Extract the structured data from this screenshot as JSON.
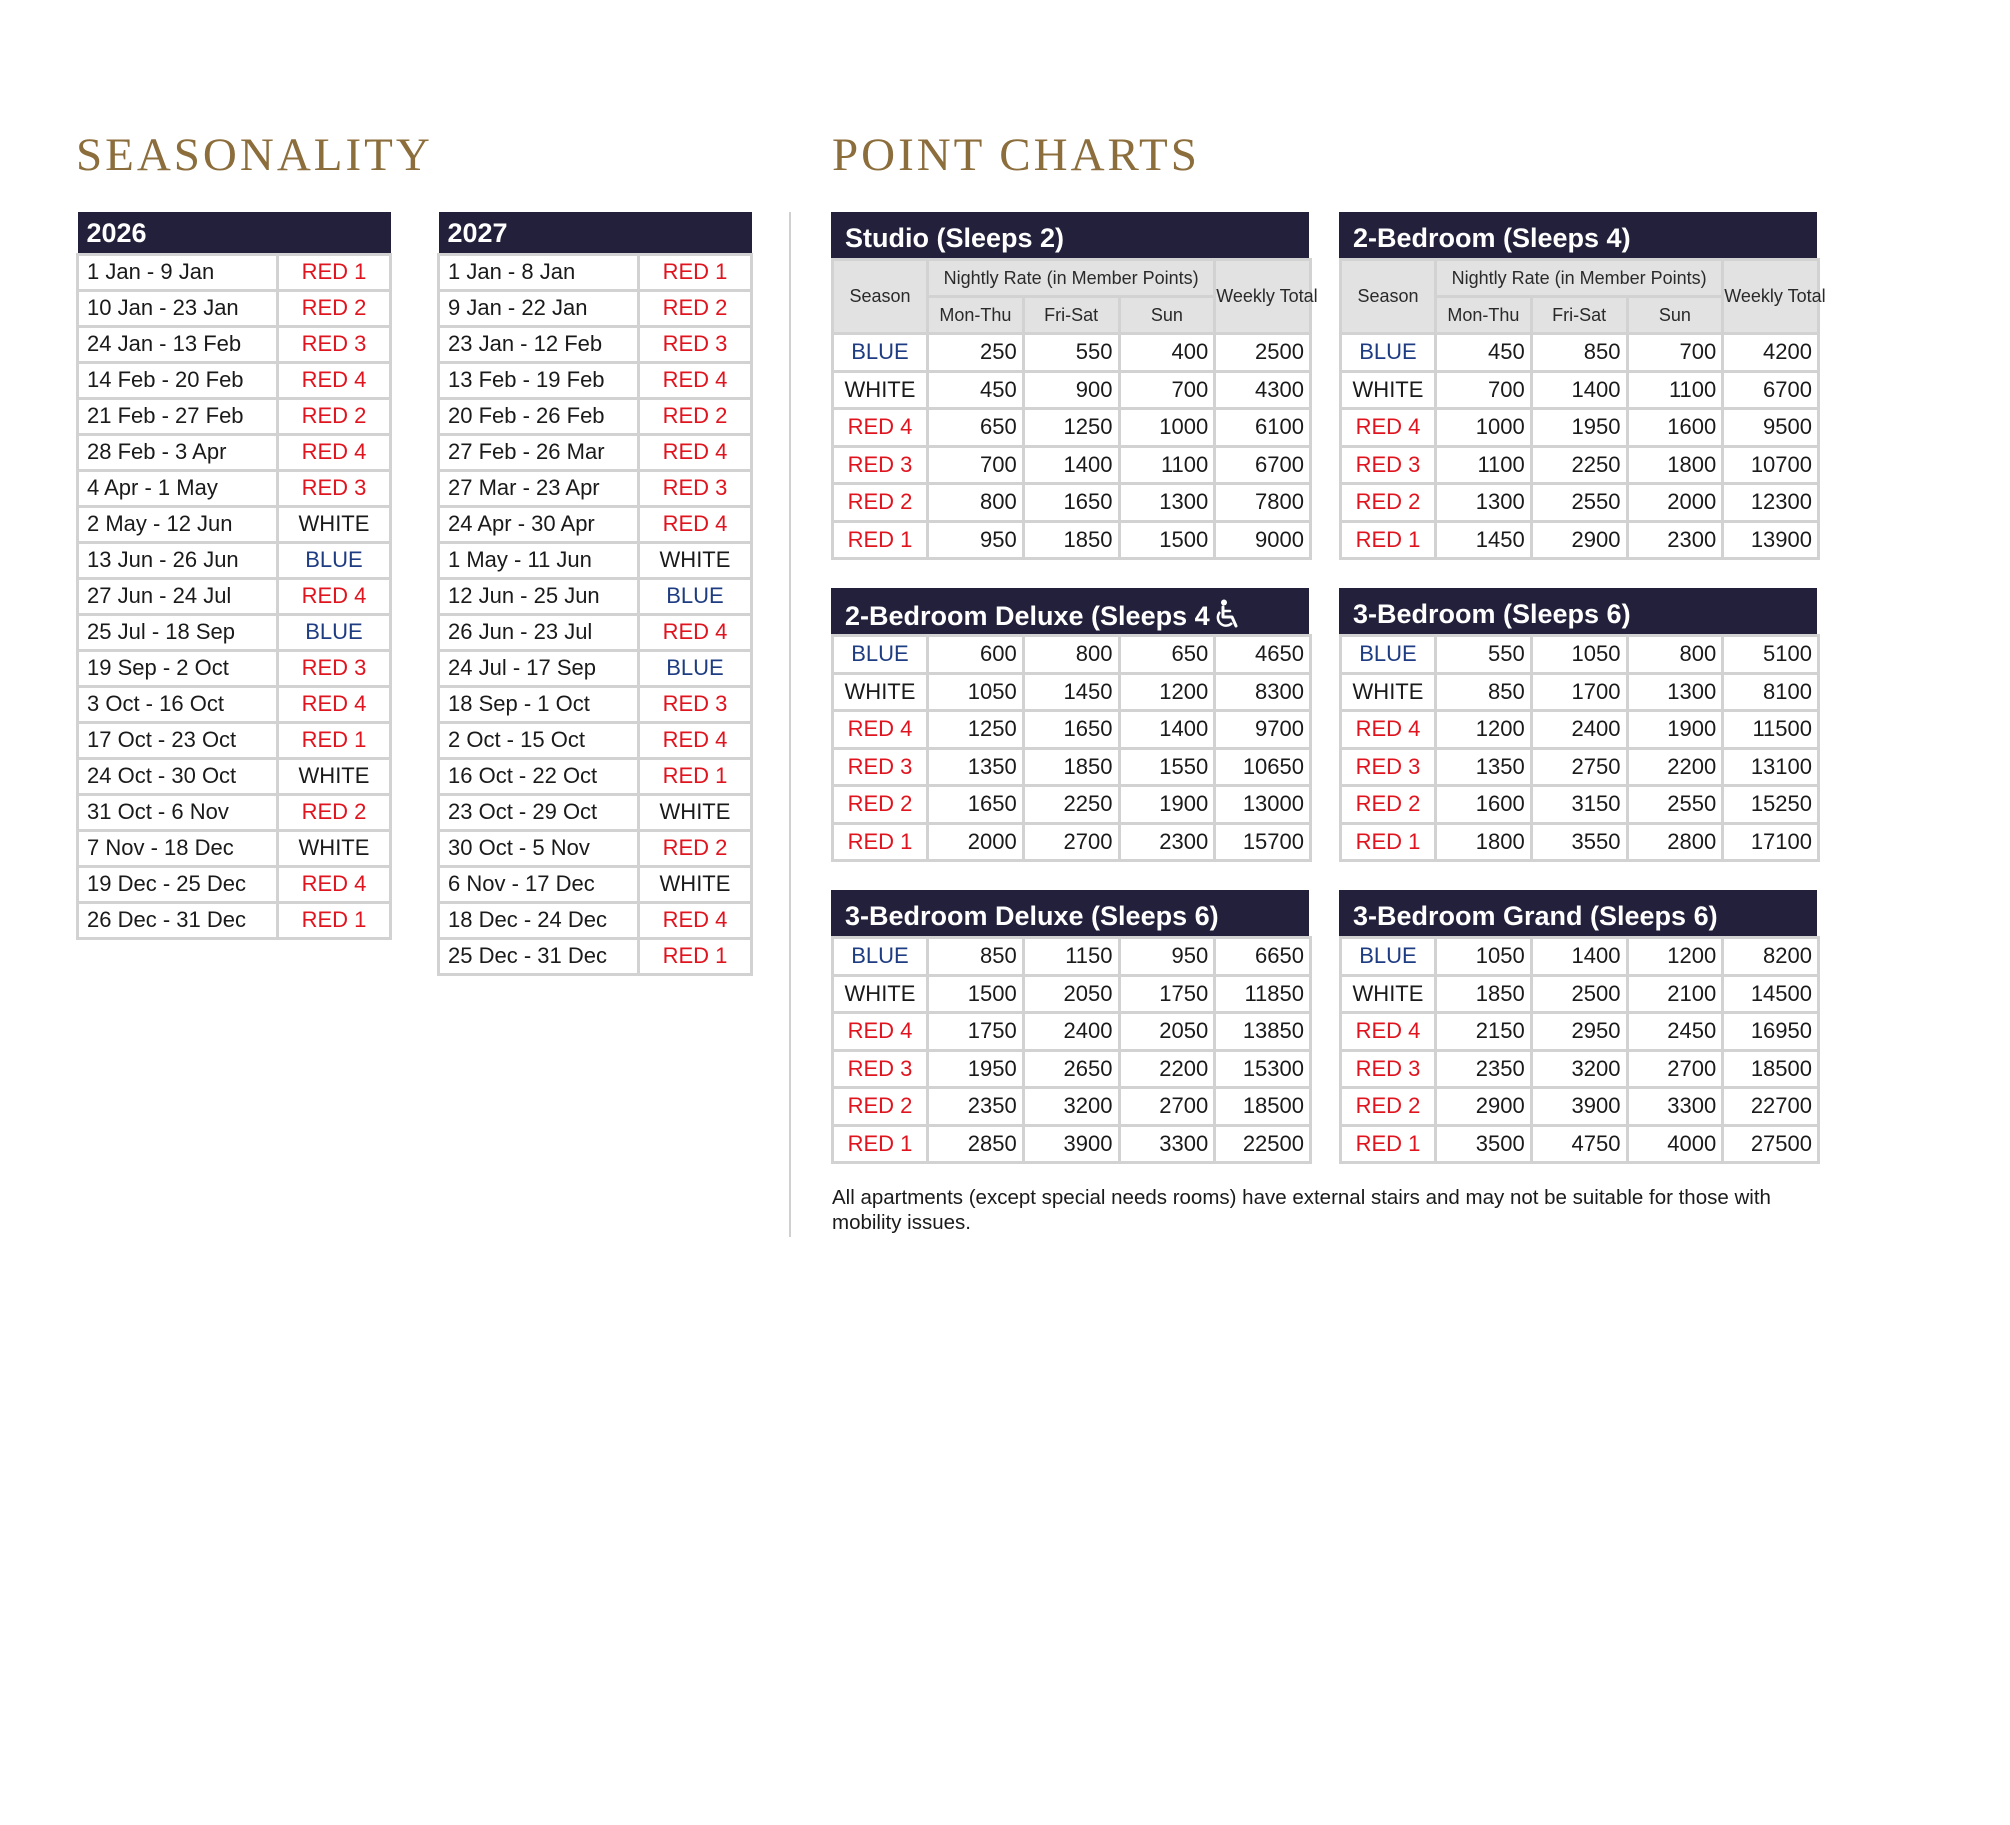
{
  "headings": {
    "seasonality": "SEASONALITY",
    "point_charts": "POINT CHARTS"
  },
  "seasonality": [
    {
      "year": "2026",
      "rows": [
        [
          "1 Jan - 9 Jan",
          "RED 1"
        ],
        [
          "10 Jan - 23 Jan",
          "RED 2"
        ],
        [
          "24 Jan - 13 Feb",
          "RED 3"
        ],
        [
          "14 Feb - 20 Feb",
          "RED 4"
        ],
        [
          "21 Feb - 27 Feb",
          "RED 2"
        ],
        [
          "28 Feb - 3 Apr",
          "RED 4"
        ],
        [
          "4 Apr - 1 May",
          "RED 3"
        ],
        [
          "2 May - 12 Jun",
          "WHITE"
        ],
        [
          "13 Jun - 26 Jun",
          "BLUE"
        ],
        [
          "27 Jun - 24 Jul",
          "RED 4"
        ],
        [
          "25 Jul - 18 Sep",
          "BLUE"
        ],
        [
          "19 Sep - 2 Oct",
          "RED 3"
        ],
        [
          "3 Oct - 16 Oct",
          "RED 4"
        ],
        [
          "17 Oct - 23 Oct",
          "RED 1"
        ],
        [
          "24 Oct - 30 Oct",
          "WHITE"
        ],
        [
          "31 Oct - 6 Nov",
          "RED 2"
        ],
        [
          "7 Nov - 18 Dec",
          "WHITE"
        ],
        [
          "19 Dec - 25 Dec",
          "RED 4"
        ],
        [
          "26 Dec - 31 Dec",
          "RED 1"
        ]
      ]
    },
    {
      "year": "2027",
      "rows": [
        [
          "1 Jan - 8 Jan",
          "RED 1"
        ],
        [
          "9 Jan - 22 Jan",
          "RED 2"
        ],
        [
          "23 Jan - 12 Feb",
          "RED 3"
        ],
        [
          "13 Feb - 19 Feb",
          "RED 4"
        ],
        [
          "20 Feb - 26 Feb",
          "RED 2"
        ],
        [
          "27 Feb - 26 Mar",
          "RED 4"
        ],
        [
          "27 Mar - 23 Apr",
          "RED 3"
        ],
        [
          "24 Apr - 30 Apr",
          "RED 4"
        ],
        [
          "1 May - 11 Jun",
          "WHITE"
        ],
        [
          "12 Jun - 25 Jun",
          "BLUE"
        ],
        [
          "26 Jun - 23 Jul",
          "RED 4"
        ],
        [
          "24 Jul - 17 Sep",
          "BLUE"
        ],
        [
          "18 Sep - 1 Oct",
          "RED 3"
        ],
        [
          "2 Oct - 15 Oct",
          "RED 4"
        ],
        [
          "16 Oct - 22 Oct",
          "RED 1"
        ],
        [
          "23 Oct - 29 Oct",
          "WHITE"
        ],
        [
          "30 Oct - 5 Nov",
          "RED 2"
        ],
        [
          "6 Nov - 17 Dec",
          "WHITE"
        ],
        [
          "18 Dec - 24 Dec",
          "RED 4"
        ],
        [
          "25 Dec - 31 Dec",
          "RED 1"
        ]
      ]
    }
  ],
  "table_header": {
    "season": "Season",
    "nightly": "Nightly Rate (in Member Points)",
    "mon_thu": "Mon-Thu",
    "fri_sat": "Fri-Sat",
    "sun": "Sun",
    "weekly": "Weekly Total"
  },
  "point_charts": [
    {
      "title": "Studio (Sleeps 2)",
      "show_header": true,
      "accessible_icon": false,
      "rows": [
        [
          "BLUE",
          "250",
          "550",
          "400",
          "2500"
        ],
        [
          "WHITE",
          "450",
          "900",
          "700",
          "4300"
        ],
        [
          "RED 4",
          "650",
          "1250",
          "1000",
          "6100"
        ],
        [
          "RED 3",
          "700",
          "1400",
          "1100",
          "6700"
        ],
        [
          "RED 2",
          "800",
          "1650",
          "1300",
          "7800"
        ],
        [
          "RED 1",
          "950",
          "1850",
          "1500",
          "9000"
        ]
      ]
    },
    {
      "title": "2-Bedroom (Sleeps 4)",
      "show_header": true,
      "accessible_icon": false,
      "rows": [
        [
          "BLUE",
          "450",
          "850",
          "700",
          "4200"
        ],
        [
          "WHITE",
          "700",
          "1400",
          "1100",
          "6700"
        ],
        [
          "RED 4",
          "1000",
          "1950",
          "1600",
          "9500"
        ],
        [
          "RED 3",
          "1100",
          "2250",
          "1800",
          "10700"
        ],
        [
          "RED 2",
          "1300",
          "2550",
          "2000",
          "12300"
        ],
        [
          "RED 1",
          "1450",
          "2900",
          "2300",
          "13900"
        ]
      ]
    },
    {
      "title": "2-Bedroom Deluxe (Sleeps 4",
      "show_header": false,
      "accessible_icon": true,
      "rows": [
        [
          "BLUE",
          "600",
          "800",
          "650",
          "4650"
        ],
        [
          "WHITE",
          "1050",
          "1450",
          "1200",
          "8300"
        ],
        [
          "RED 4",
          "1250",
          "1650",
          "1400",
          "9700"
        ],
        [
          "RED 3",
          "1350",
          "1850",
          "1550",
          "10650"
        ],
        [
          "RED 2",
          "1650",
          "2250",
          "1900",
          "13000"
        ],
        [
          "RED 1",
          "2000",
          "2700",
          "2300",
          "15700"
        ]
      ]
    },
    {
      "title": "3-Bedroom (Sleeps 6)",
      "show_header": false,
      "accessible_icon": false,
      "rows": [
        [
          "BLUE",
          "550",
          "1050",
          "800",
          "5100"
        ],
        [
          "WHITE",
          "850",
          "1700",
          "1300",
          "8100"
        ],
        [
          "RED 4",
          "1200",
          "2400",
          "1900",
          "11500"
        ],
        [
          "RED 3",
          "1350",
          "2750",
          "2200",
          "13100"
        ],
        [
          "RED 2",
          "1600",
          "3150",
          "2550",
          "15250"
        ],
        [
          "RED 1",
          "1800",
          "3550",
          "2800",
          "17100"
        ]
      ]
    },
    {
      "title": "3-Bedroom Deluxe (Sleeps 6)",
      "show_header": false,
      "accessible_icon": false,
      "rows": [
        [
          "BLUE",
          "850",
          "1150",
          "950",
          "6650"
        ],
        [
          "WHITE",
          "1500",
          "2050",
          "1750",
          "11850"
        ],
        [
          "RED 4",
          "1750",
          "2400",
          "2050",
          "13850"
        ],
        [
          "RED 3",
          "1950",
          "2650",
          "2200",
          "15300"
        ],
        [
          "RED 2",
          "2350",
          "3200",
          "2700",
          "18500"
        ],
        [
          "RED 1",
          "2850",
          "3900",
          "3300",
          "22500"
        ]
      ]
    },
    {
      "title": "3-Bedroom Grand (Sleeps 6)",
      "show_header": false,
      "accessible_icon": false,
      "rows": [
        [
          "BLUE",
          "1050",
          "1400",
          "1200",
          "8200"
        ],
        [
          "WHITE",
          "1850",
          "2500",
          "2100",
          "14500"
        ],
        [
          "RED 4",
          "2150",
          "2950",
          "2450",
          "16950"
        ],
        [
          "RED 3",
          "2350",
          "3200",
          "2700",
          "18500"
        ],
        [
          "RED 2",
          "2900",
          "3900",
          "3300",
          "22700"
        ],
        [
          "RED 1",
          "3500",
          "4750",
          "4000",
          "27500"
        ]
      ]
    }
  ],
  "colors": {
    "RED": "#e0141e",
    "BLUE": "#1e3c82",
    "WHITE": "#1a1a1a",
    "header_bg": "#22203a",
    "heading_gold": "#8c6d3c"
  },
  "accessible_icon_name": "wheelchair-icon",
  "note": "All apartments (except special needs rooms) have external stairs and may not be suitable for those with mobility issues."
}
